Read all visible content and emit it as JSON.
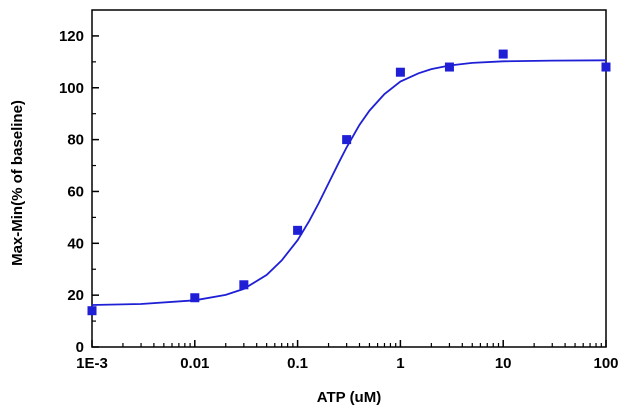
{
  "chart_data": {
    "type": "scatter",
    "title": "",
    "xlabel": "ATP (uM)",
    "ylabel": "Max-Min(% of baseline)",
    "x_scale": "log",
    "xlim": [
      0.001,
      100
    ],
    "ylim": [
      0,
      130
    ],
    "x_tick_values": [
      0.001,
      0.01,
      0.1,
      1,
      10,
      100
    ],
    "x_tick_labels": [
      "1E-3",
      "0.01",
      "0.1",
      "1",
      "10",
      "100"
    ],
    "y_tick_values": [
      0,
      20,
      40,
      60,
      80,
      100,
      120
    ],
    "y_tick_labels": [
      "0",
      "20",
      "40",
      "60",
      "80",
      "100",
      "120"
    ],
    "grid": false,
    "series": [
      {
        "type": "scatter",
        "marker": "square",
        "color": "#1f1fd6",
        "x": [
          0.001,
          0.01,
          0.03,
          0.1,
          0.3,
          1,
          3,
          10,
          100
        ],
        "y": [
          14,
          19,
          24,
          45,
          80,
          106,
          108,
          113,
          108
        ]
      },
      {
        "type": "line",
        "fit": "sigmoidal dose-response",
        "color": "#1f1fd6",
        "x": [
          0.001,
          0.003,
          0.01,
          0.02,
          0.03,
          0.05,
          0.07,
          0.1,
          0.13,
          0.16,
          0.2,
          0.25,
          0.3,
          0.4,
          0.5,
          0.7,
          1,
          1.5,
          2,
          3,
          5,
          10,
          30,
          100
        ],
        "y": [
          16.2,
          16.6,
          18.0,
          20.1,
          22.4,
          27.8,
          33.4,
          41.2,
          48.7,
          55.4,
          63.1,
          70.9,
          77.0,
          85.7,
          91.2,
          97.6,
          102.4,
          105.6,
          107.2,
          108.6,
          109.6,
          110.2,
          110.5,
          110.6
        ]
      }
    ]
  }
}
